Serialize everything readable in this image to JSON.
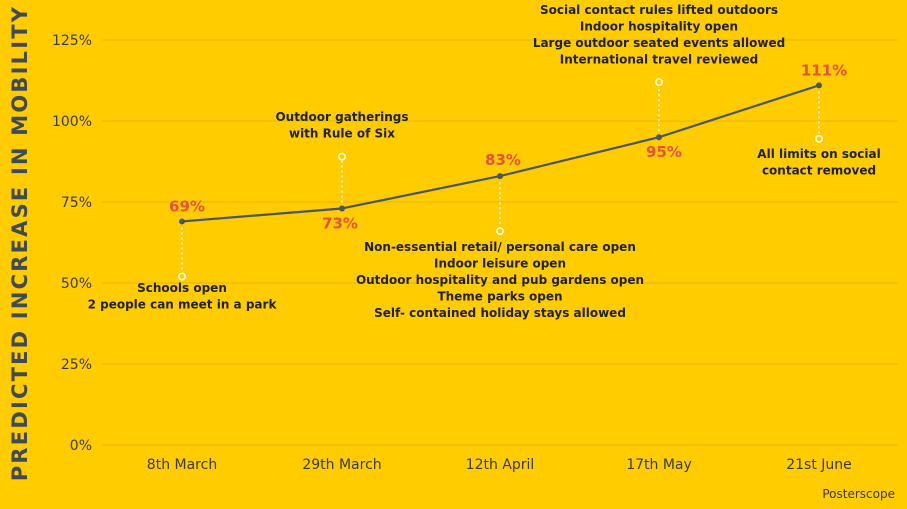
{
  "chart_data": {
    "type": "line",
    "title": "",
    "xlabel": "",
    "ylabel": "PREDICTED INCREASE IN MOBILITY",
    "categories": [
      "8th March",
      "29th March",
      "12th April",
      "17th May",
      "21st June"
    ],
    "values": [
      69,
      73,
      83,
      95,
      111
    ],
    "value_labels": [
      "69%",
      "73%",
      "83%",
      "95%",
      "111%"
    ],
    "ylim": [
      0,
      125
    ],
    "yticks": [
      0,
      25,
      50,
      75,
      100,
      125
    ],
    "ytick_labels": [
      "0%",
      "25%",
      "50%",
      "75%",
      "100%",
      "125%"
    ],
    "grid": true,
    "legend": "none",
    "annotations": [
      {
        "category": "8th March",
        "lines": [
          "Schools open",
          "2 people can meet in a park"
        ]
      },
      {
        "category": "29th March",
        "lines": [
          "Outdoor gatherings",
          "with Rule of Six"
        ]
      },
      {
        "category": "12th April",
        "lines": [
          "Non-essential retail/ personal care open",
          "Indoor leisure open",
          "Outdoor hospitality and pub gardens open",
          "Theme parks open",
          "Self- contained holiday stays allowed"
        ]
      },
      {
        "category": "17th May",
        "lines": [
          "Social contact rules lifted outdoors",
          "Indoor hospitality open",
          "Large outdoor seated events allowed",
          "International travel reviewed"
        ]
      },
      {
        "category": "21st June",
        "lines": [
          "All limits on social",
          "contact removed"
        ]
      }
    ]
  },
  "colors": {
    "background": "#FFCC00",
    "line": "#4a5560",
    "value_label": "#E8513C",
    "text": "#222222",
    "axis_label": "#3f4a55",
    "grid": "#E6B800"
  },
  "brand": "Posterscope"
}
